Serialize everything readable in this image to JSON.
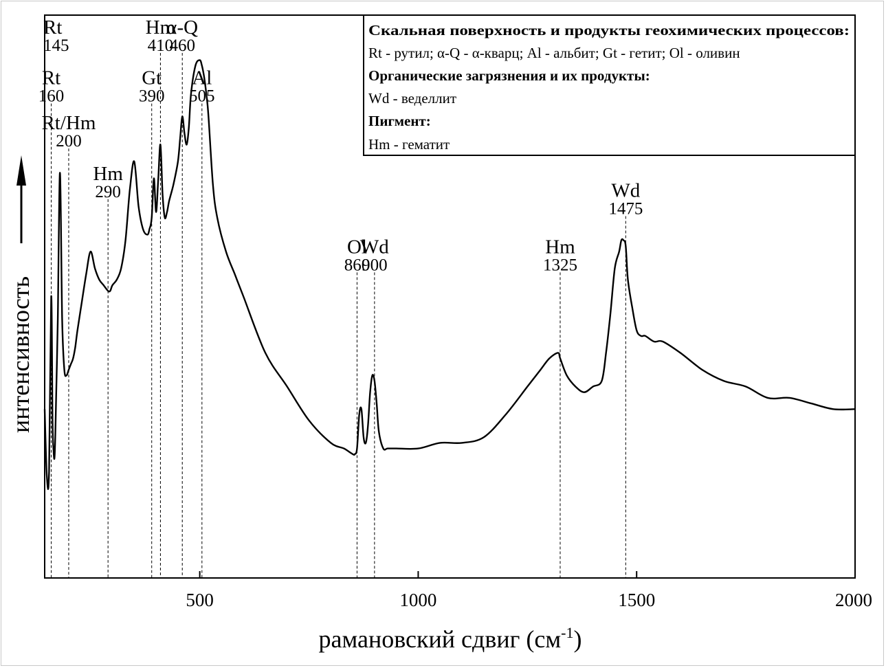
{
  "chart_data": {
    "type": "line",
    "xlabel_main": "рамановский сдвиг (см",
    "xlabel_sup": "-1",
    "xlabel_close": ")",
    "ylabel": "интенсивность",
    "xlim": [
      145,
      2000
    ],
    "xticks": [
      500,
      1000,
      1500,
      2000
    ],
    "ylim": [
      0,
      1
    ],
    "grid": false,
    "series": [
      {
        "x": [
          145,
          150,
          155,
          160,
          163,
          165,
          168,
          172,
          175,
          180,
          185,
          190,
          195,
          200,
          205,
          210,
          215,
          220,
          230,
          240,
          250,
          260,
          270,
          280,
          290,
          295,
          300,
          310,
          320,
          330,
          340,
          350,
          360,
          370,
          380,
          385,
          390,
          395,
          400,
          405,
          410,
          415,
          420,
          425,
          430,
          440,
          450,
          455,
          460,
          465,
          470,
          475,
          480,
          490,
          500,
          505,
          510,
          515,
          520,
          530,
          540,
          560,
          580,
          600,
          650,
          700,
          750,
          800,
          830,
          850,
          855,
          860,
          865,
          870,
          875,
          880,
          885,
          890,
          895,
          900,
          905,
          910,
          920,
          930,
          950,
          1000,
          1050,
          1100,
          1150,
          1200,
          1250,
          1280,
          1300,
          1320,
          1325,
          1340,
          1360,
          1380,
          1400,
          1420,
          1430,
          1440,
          1450,
          1460,
          1465,
          1470,
          1475,
          1480,
          1490,
          1500,
          1510,
          1520,
          1540,
          1560,
          1600,
          1650,
          1700,
          1750,
          1800,
          1850,
          1900,
          1950,
          2000
        ],
        "y": [
          0.3,
          0.18,
          0.19,
          0.5,
          0.28,
          0.23,
          0.22,
          0.35,
          0.46,
          0.72,
          0.46,
          0.37,
          0.36,
          0.37,
          0.38,
          0.39,
          0.41,
          0.44,
          0.49,
          0.54,
          0.58,
          0.55,
          0.53,
          0.52,
          0.51,
          0.51,
          0.52,
          0.53,
          0.55,
          0.6,
          0.69,
          0.74,
          0.66,
          0.62,
          0.61,
          0.62,
          0.64,
          0.71,
          0.65,
          0.71,
          0.77,
          0.68,
          0.64,
          0.65,
          0.67,
          0.7,
          0.74,
          0.78,
          0.82,
          0.79,
          0.77,
          0.8,
          0.86,
          0.91,
          0.92,
          0.91,
          0.89,
          0.86,
          0.82,
          0.7,
          0.64,
          0.58,
          0.54,
          0.5,
          0.4,
          0.34,
          0.28,
          0.24,
          0.23,
          0.22,
          0.22,
          0.23,
          0.29,
          0.3,
          0.25,
          0.24,
          0.27,
          0.33,
          0.36,
          0.35,
          0.31,
          0.26,
          0.23,
          0.23,
          0.23,
          0.23,
          0.24,
          0.24,
          0.25,
          0.29,
          0.34,
          0.37,
          0.39,
          0.4,
          0.39,
          0.36,
          0.34,
          0.33,
          0.34,
          0.35,
          0.4,
          0.47,
          0.55,
          0.58,
          0.6,
          0.6,
          0.59,
          0.53,
          0.48,
          0.44,
          0.43,
          0.43,
          0.42,
          0.42,
          0.4,
          0.37,
          0.35,
          0.34,
          0.32,
          0.32,
          0.31,
          0.3,
          0.3
        ]
      }
    ],
    "peaks": [
      {
        "label": "Rt",
        "wavenumber": "145",
        "x": 145,
        "label_y": 0.95
      },
      {
        "label": "Rt",
        "wavenumber": "160",
        "x": 160,
        "label_y": 0.86
      },
      {
        "label": "Rt/Hm",
        "wavenumber": "200",
        "x": 200,
        "label_y": 0.78
      },
      {
        "label": "Hm",
        "wavenumber": "290",
        "x": 290,
        "label_y": 0.69
      },
      {
        "label": "Gt",
        "wavenumber": "390",
        "x": 390,
        "label_y": 0.86
      },
      {
        "label": "Hm",
        "wavenumber": "410",
        "x": 410,
        "label_y": 0.95
      },
      {
        "label": "α-Q",
        "wavenumber": "460",
        "x": 460,
        "label_y": 0.95
      },
      {
        "label": "Al",
        "wavenumber": "505",
        "x": 505,
        "label_y": 0.86
      },
      {
        "label": "Ol",
        "wavenumber": "860",
        "x": 860,
        "label_y": 0.56
      },
      {
        "label": "Wd",
        "wavenumber": "900",
        "x": 900,
        "label_y": 0.56
      },
      {
        "label": "Hm",
        "wavenumber": "1325",
        "x": 1325,
        "label_y": 0.56
      },
      {
        "label": "Wd",
        "wavenumber": "1475",
        "x": 1475,
        "label_y": 0.66
      }
    ],
    "legend": {
      "position": "top-right",
      "lines": [
        {
          "text": "Скальная поверхность и продукты геохимических процессов:",
          "bold": true
        },
        {
          "text": "Rt - рутил; α-Q - α-кварц; Al - альбит; Gt - гетит; Ol - оливин",
          "bold": false
        },
        {
          "text": "Органические загрязнения и их продукты:",
          "bold": true
        },
        {
          "text": "Wd - веделлит",
          "bold": false
        },
        {
          "text": "Пигмент:",
          "bold": true
        },
        {
          "text": "Hm - гематит",
          "bold": false
        }
      ]
    }
  }
}
